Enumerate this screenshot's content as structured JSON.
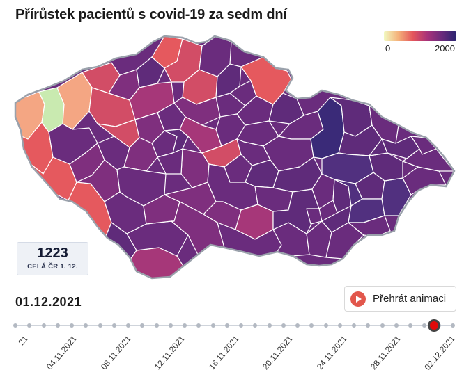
{
  "title": "Přírůstek pacientů s covid-19 za sedm dní",
  "legend": {
    "min_label": "0",
    "max_label": "2000",
    "colors": [
      "#f2f9c1",
      "#f4b17a",
      "#e4565c",
      "#a8327a",
      "#6a2a7c",
      "#2a2470"
    ]
  },
  "national": {
    "value": "1223",
    "label": "CELÁ ČR 1. 12."
  },
  "current_date": "01.12.2021",
  "play_button": {
    "label": "Přehrát animaci"
  },
  "timeline": {
    "first_label_fragment": "21",
    "labels": [
      "04.11.2021",
      "08.11.2021",
      "12.11.2021",
      "16.11.2021",
      "20.11.2021",
      "24.11.2021",
      "28.11.2021",
      "02.12.2021"
    ]
  },
  "map_colors": {
    "border": "#ffffff",
    "outline": "#9aa1ab",
    "low": "#c9eab0",
    "light": "#f4a683",
    "salmon": "#e5595e",
    "rose": "#d24d66",
    "magenta": "#a63779",
    "plum": "#7f2f7e",
    "purple": "#5f2b7a",
    "violet": "#51307f",
    "navy": "#3a2a78"
  }
}
